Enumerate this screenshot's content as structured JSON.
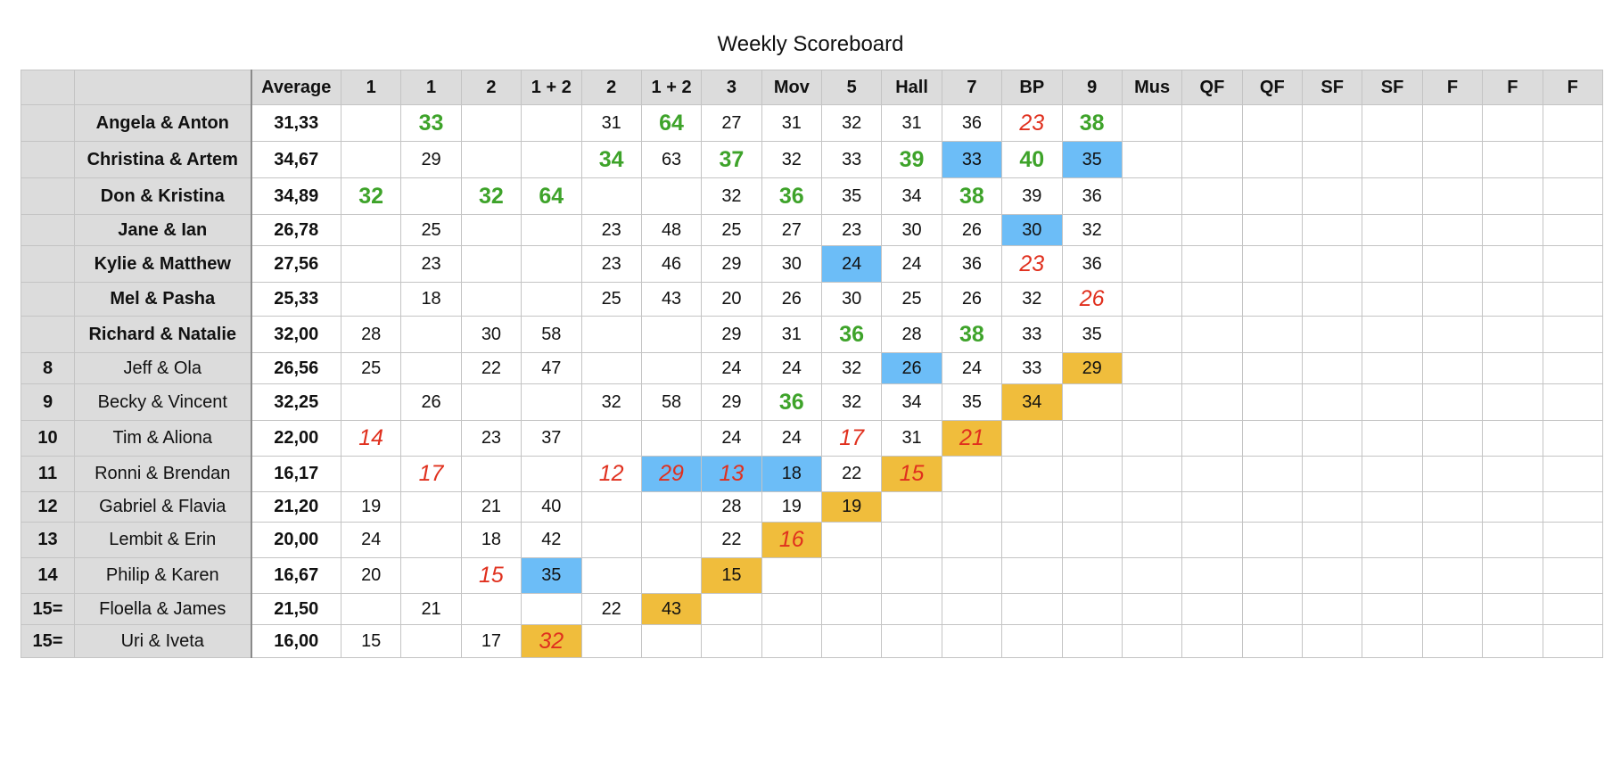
{
  "title": "Weekly Scoreboard",
  "colors": {
    "high": "#3ea32a",
    "low": "#e0301e",
    "blue_cell": "#6cbdf7",
    "gold_cell": "#f0bd3c",
    "header_bg": "#dcdcdc"
  },
  "legend_note": "",
  "columns": [
    "",
    "",
    "Average",
    "1",
    "1",
    "2",
    "1 + 2",
    "2",
    "1 + 2",
    "3",
    "Mov",
    "5",
    "Hall",
    "7",
    "BP",
    "9",
    "Mus",
    "QF",
    "QF",
    "SF",
    "SF",
    "F",
    "F",
    "F"
  ],
  "rows": [
    {
      "place": "",
      "couple": "Angela & Anton",
      "bold": true,
      "average": "31,33",
      "scores": [
        "",
        {
          "v": "33",
          "s": "hi"
        },
        "",
        "",
        "31",
        {
          "v": "64",
          "s": "hi"
        },
        "27",
        "31",
        "32",
        "31",
        "36",
        {
          "v": "23",
          "s": "lo"
        },
        {
          "v": "38",
          "s": "hi"
        },
        "",
        "",
        "",
        "",
        "",
        "",
        "",
        ""
      ]
    },
    {
      "place": "",
      "couple": "Christina & Artem",
      "bold": true,
      "average": "34,67",
      "scores": [
        "",
        "29",
        "",
        "",
        {
          "v": "34",
          "s": "hi"
        },
        "63",
        {
          "v": "37",
          "s": "hi"
        },
        "32",
        "33",
        {
          "v": "39",
          "s": "hi"
        },
        {
          "v": "33",
          "b": "blue"
        },
        {
          "v": "40",
          "s": "hi"
        },
        {
          "v": "35",
          "b": "blue"
        },
        "",
        "",
        "",
        "",
        "",
        "",
        "",
        ""
      ]
    },
    {
      "place": "",
      "couple": "Don & Kristina",
      "bold": true,
      "average": "34,89",
      "scores": [
        {
          "v": "32",
          "s": "hi"
        },
        "",
        {
          "v": "32",
          "s": "hi"
        },
        {
          "v": "64",
          "s": "hi"
        },
        "",
        "",
        "32",
        {
          "v": "36",
          "s": "hi"
        },
        "35",
        "34",
        {
          "v": "38",
          "s": "hi"
        },
        "39",
        "36",
        "",
        "",
        "",
        "",
        "",
        "",
        "",
        ""
      ]
    },
    {
      "place": "",
      "couple": "Jane & Ian",
      "bold": true,
      "average": "26,78",
      "scores": [
        "",
        "25",
        "",
        "",
        "23",
        "48",
        "25",
        "27",
        "23",
        "30",
        "26",
        {
          "v": "30",
          "b": "blue"
        },
        "32",
        "",
        "",
        "",
        "",
        "",
        "",
        "",
        ""
      ]
    },
    {
      "place": "",
      "couple": "Kylie & Matthew",
      "bold": true,
      "average": "27,56",
      "scores": [
        "",
        "23",
        "",
        "",
        "23",
        "46",
        "29",
        "30",
        {
          "v": "24",
          "b": "blue"
        },
        "24",
        "36",
        {
          "v": "23",
          "s": "lo"
        },
        "36",
        "",
        "",
        "",
        "",
        "",
        "",
        "",
        ""
      ]
    },
    {
      "place": "",
      "couple": "Mel & Pasha",
      "bold": true,
      "average": "25,33",
      "scores": [
        "",
        "18",
        "",
        "",
        "25",
        "43",
        "20",
        "26",
        "30",
        "25",
        "26",
        "32",
        {
          "v": "26",
          "s": "lo"
        },
        "",
        "",
        "",
        "",
        "",
        "",
        "",
        ""
      ]
    },
    {
      "place": "",
      "couple": "Richard & Natalie",
      "bold": true,
      "average": "32,00",
      "scores": [
        "28",
        "",
        "30",
        "58",
        "",
        "",
        "29",
        "31",
        {
          "v": "36",
          "s": "hi"
        },
        "28",
        {
          "v": "38",
          "s": "hi"
        },
        "33",
        "35",
        "",
        "",
        "",
        "",
        "",
        "",
        "",
        ""
      ]
    },
    {
      "place": "8",
      "couple": "Jeff & Ola",
      "bold": false,
      "average": "26,56",
      "scores": [
        "25",
        "",
        "22",
        "47",
        "",
        "",
        "24",
        "24",
        "32",
        {
          "v": "26",
          "b": "blue"
        },
        "24",
        "33",
        {
          "v": "29",
          "b": "gold"
        },
        "",
        "",
        "",
        "",
        "",
        "",
        "",
        ""
      ]
    },
    {
      "place": "9",
      "couple": "Becky & Vincent",
      "bold": false,
      "average": "32,25",
      "scores": [
        "",
        "26",
        "",
        "",
        "32",
        "58",
        "29",
        {
          "v": "36",
          "s": "hi"
        },
        "32",
        "34",
        "35",
        {
          "v": "34",
          "b": "gold"
        },
        "",
        "",
        "",
        "",
        "",
        "",
        "",
        "",
        ""
      ]
    },
    {
      "place": "10",
      "couple": "Tim & Aliona",
      "bold": false,
      "average": "22,00",
      "scores": [
        {
          "v": "14",
          "s": "lo"
        },
        "",
        "23",
        "37",
        "",
        "",
        "24",
        "24",
        {
          "v": "17",
          "s": "lo"
        },
        "31",
        {
          "v": "21",
          "s": "lo",
          "b": "gold"
        },
        "",
        "",
        "",
        "",
        "",
        "",
        "",
        "",
        "",
        ""
      ]
    },
    {
      "place": "11",
      "couple": "Ronni & Brendan",
      "bold": false,
      "average": "16,17",
      "scores": [
        "",
        {
          "v": "17",
          "s": "lo"
        },
        "",
        "",
        {
          "v": "12",
          "s": "lo"
        },
        {
          "v": "29",
          "s": "lo",
          "b": "blue"
        },
        {
          "v": "13",
          "s": "lo",
          "b": "blue"
        },
        {
          "v": "18",
          "b": "blue"
        },
        "22",
        {
          "v": "15",
          "s": "lo",
          "b": "gold"
        },
        "",
        "",
        "",
        "",
        "",
        "",
        "",
        "",
        "",
        "",
        ""
      ]
    },
    {
      "place": "12",
      "couple": "Gabriel & Flavia",
      "bold": false,
      "average": "21,20",
      "scores": [
        "19",
        "",
        "21",
        "40",
        "",
        "",
        "28",
        "19",
        {
          "v": "19",
          "b": "gold"
        },
        "",
        "",
        "",
        "",
        "",
        "",
        "",
        "",
        "",
        "",
        "",
        ""
      ]
    },
    {
      "place": "13",
      "couple": "Lembit & Erin",
      "bold": false,
      "average": "20,00",
      "scores": [
        "24",
        "",
        "18",
        "42",
        "",
        "",
        "22",
        {
          "v": "16",
          "s": "lo",
          "b": "gold"
        },
        "",
        "",
        "",
        "",
        "",
        "",
        "",
        "",
        "",
        "",
        "",
        "",
        ""
      ]
    },
    {
      "place": "14",
      "couple": "Philip & Karen",
      "bold": false,
      "average": "16,67",
      "scores": [
        "20",
        "",
        {
          "v": "15",
          "s": "lo"
        },
        {
          "v": "35",
          "b": "blue"
        },
        "",
        "",
        {
          "v": "15",
          "b": "gold"
        },
        "",
        "",
        "",
        "",
        "",
        "",
        "",
        "",
        "",
        "",
        "",
        "",
        "",
        ""
      ]
    },
    {
      "place": "15=",
      "couple": "Floella & James",
      "bold": false,
      "average": "21,50",
      "scores": [
        "",
        "21",
        "",
        "",
        "22",
        {
          "v": "43",
          "b": "gold"
        },
        "",
        "",
        "",
        "",
        "",
        "",
        "",
        "",
        "",
        "",
        "",
        "",
        "",
        "",
        ""
      ]
    },
    {
      "place": "15=",
      "couple": "Uri & Iveta",
      "bold": false,
      "average": "16,00",
      "scores": [
        "15",
        "",
        "17",
        {
          "v": "32",
          "s": "lo",
          "b": "gold"
        },
        "",
        "",
        "",
        "",
        "",
        "",
        "",
        "",
        "",
        "",
        "",
        "",
        "",
        "",
        "",
        "",
        ""
      ]
    }
  ]
}
